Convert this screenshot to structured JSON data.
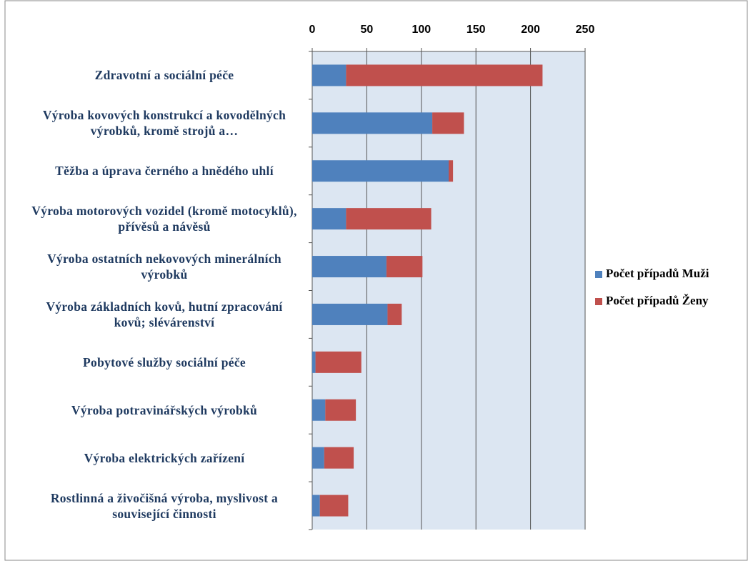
{
  "chart_data": {
    "type": "stacked-bar-horizontal",
    "categories": [
      "Zdravotní a sociální péče",
      "Výroba kovových konstrukcí a kovodělných výrobků, kromě strojů a…",
      "Těžba a úprava černého a hnědého uhlí",
      "Výroba motorových vozidel (kromě motocyklů), přívěsů a návěsů",
      "Výroba ostatních nekovových minerálních výrobků",
      "Výroba základních kovů, hutní zpracování kovů; slévárenství",
      "Pobytové služby sociální péče",
      "Výroba potravinářských výrobků",
      "Výroba elektrických zařízení",
      "Rostlinná a živočišná výroba, myslivost a související činnosti"
    ],
    "series": [
      {
        "name": "Počet případů Muži",
        "color": "#4f81bd",
        "values": [
          31,
          110,
          125,
          31,
          68,
          69,
          3,
          12,
          11,
          7
        ]
      },
      {
        "name": "Počet případů Ženy",
        "color": "#c0504d",
        "values": [
          180,
          29,
          4,
          78,
          33,
          13,
          42,
          28,
          27,
          26
        ]
      }
    ],
    "xlim": [
      0,
      250
    ],
    "xticks": [
      0,
      50,
      100,
      150,
      200,
      250
    ],
    "grid": true,
    "legend": "right"
  }
}
